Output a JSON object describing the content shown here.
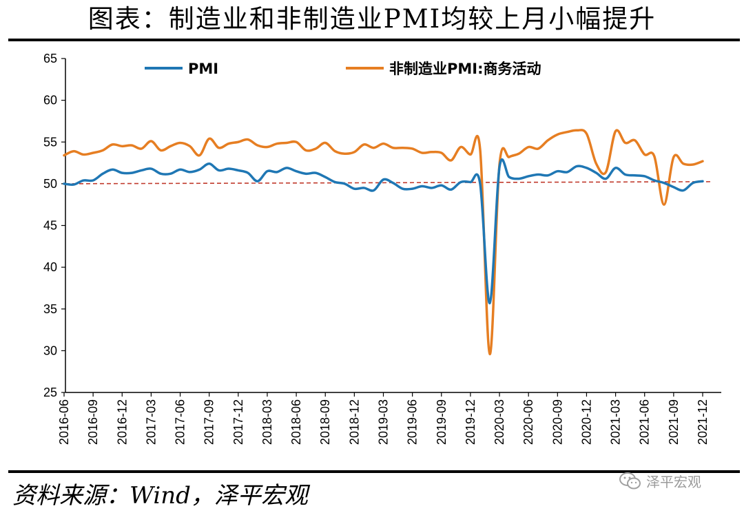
{
  "title": "图表：制造业和非制造业PMI均较上月小幅提升",
  "source": "资料来源：Wind，泽平宏观",
  "watermark": "泽平宏观",
  "chart_data": {
    "type": "line",
    "title": "图表：制造业和非制造业PMI均较上月小幅提升",
    "xlabel": "",
    "ylabel": "",
    "ylim": [
      25,
      65
    ],
    "yticks": [
      25,
      30,
      35,
      40,
      45,
      50,
      55,
      60,
      65
    ],
    "grid": false,
    "legend_position": "top",
    "x_tick_labels": [
      "2016-06",
      "2016-09",
      "2016-12",
      "2017-03",
      "2017-06",
      "2017-09",
      "2017-12",
      "2018-03",
      "2018-06",
      "2018-09",
      "2018-12",
      "2019-03",
      "2019-06",
      "2019-09",
      "2019-12",
      "2020-03",
      "2020-06",
      "2020-09",
      "2020-12",
      "2021-03",
      "2021-06",
      "2021-09",
      "2021-12"
    ],
    "reference_line": {
      "y": 50,
      "color": "#c0392b",
      "style": "dashed"
    },
    "series": [
      {
        "name": "PMI",
        "color": "#1f77b4",
        "values": [
          50.0,
          49.9,
          50.4,
          50.4,
          51.2,
          51.7,
          51.3,
          51.3,
          51.6,
          51.8,
          51.2,
          51.2,
          51.7,
          51.4,
          51.7,
          52.4,
          51.6,
          51.8,
          51.6,
          51.3,
          50.3,
          51.5,
          51.4,
          51.9,
          51.5,
          51.2,
          51.3,
          50.8,
          50.2,
          50.0,
          49.4,
          49.5,
          49.2,
          50.5,
          50.1,
          49.4,
          49.4,
          49.7,
          49.5,
          49.8,
          49.3,
          50.2,
          50.2,
          50.0,
          35.7,
          52.0,
          50.8,
          50.6,
          50.9,
          51.1,
          51.0,
          51.5,
          51.4,
          52.1,
          51.9,
          51.3,
          50.6,
          51.9,
          51.1,
          51.0,
          50.9,
          50.4,
          50.1,
          49.6,
          49.2,
          50.1,
          50.3
        ],
        "x_start": "2016-06",
        "x_end": "2021-12"
      },
      {
        "name": "非制造业PMI:商务活动",
        "color": "#e67e22",
        "values": [
          53.4,
          53.9,
          53.5,
          53.7,
          54.0,
          54.7,
          54.5,
          54.6,
          54.2,
          55.1,
          54.0,
          54.5,
          54.9,
          54.5,
          53.4,
          55.4,
          54.3,
          54.8,
          55.0,
          55.3,
          54.6,
          54.4,
          54.8,
          54.9,
          55.0,
          54.0,
          54.2,
          54.9,
          53.9,
          53.6,
          53.8,
          54.7,
          54.3,
          54.8,
          54.3,
          54.3,
          54.2,
          53.7,
          53.8,
          53.7,
          52.8,
          54.4,
          53.5,
          54.1,
          29.6,
          52.3,
          53.2,
          53.6,
          54.4,
          54.2,
          55.2,
          55.9,
          56.2,
          56.4,
          56.0,
          52.4,
          51.4,
          56.3,
          54.9,
          55.2,
          53.5,
          53.3,
          47.5,
          53.2,
          52.4,
          52.3,
          52.7
        ],
        "x_start": "2016-06",
        "x_end": "2021-12"
      }
    ]
  }
}
